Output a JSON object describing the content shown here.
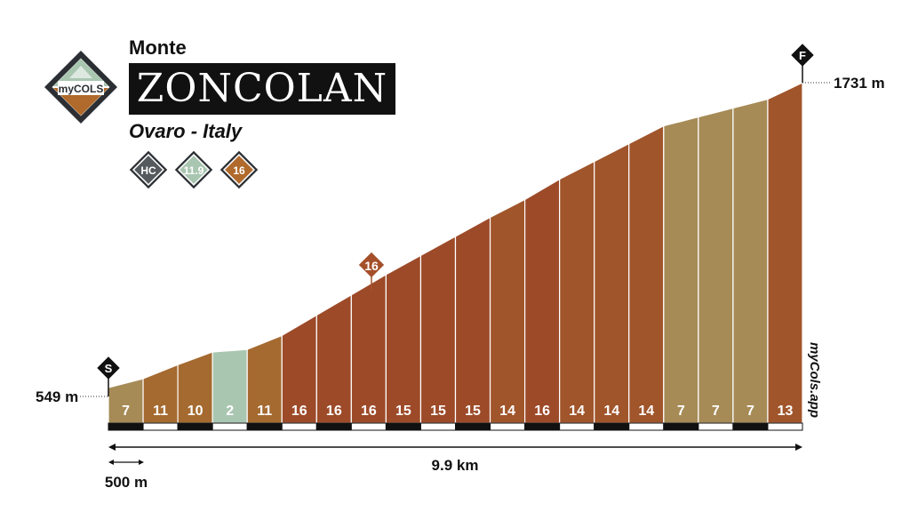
{
  "header": {
    "prefix": "Monte",
    "name": "ZONCOLAN",
    "location": "Ovaro - Italy"
  },
  "logo": {
    "brand": "myCOLS",
    "icon": "mountain-diamond-icon"
  },
  "badges": [
    {
      "name": "category-badge",
      "text": "HC",
      "color": "#555a5e"
    },
    {
      "name": "avg-gradient-badge",
      "text": "11.9",
      "color": "#a9c6b1"
    },
    {
      "name": "max-gradient-badge",
      "text": "16",
      "color": "#b06a2c"
    }
  ],
  "markers": {
    "start": "S",
    "finish": "F",
    "peak_label": "16"
  },
  "elevations": {
    "start_label": "549 m",
    "finish_label": "1731 m",
    "start": 549,
    "finish": 1731
  },
  "distance": {
    "total_label": "9.9 km",
    "scale_label": "500 m"
  },
  "watermark": "myCols.app",
  "colors": {
    "grade_2": "#a9c6b1",
    "grade_7": "#a68b57",
    "grade_10_11": "#a56a30",
    "grade_13_14": "#a0552b",
    "grade_15_16": "#9d4a29",
    "peak_marker": "#a5502a"
  },
  "chart_data": {
    "type": "area",
    "segment_length_km": 0.5,
    "total_distance_km": 9.9,
    "gradients": [
      7,
      11,
      10,
      2,
      11,
      16,
      16,
      16,
      15,
      15,
      15,
      14,
      16,
      14,
      14,
      14,
      7,
      7,
      7,
      13
    ],
    "elevation_range_m": [
      549,
      1731
    ],
    "max_gradient_segment": 8
  }
}
